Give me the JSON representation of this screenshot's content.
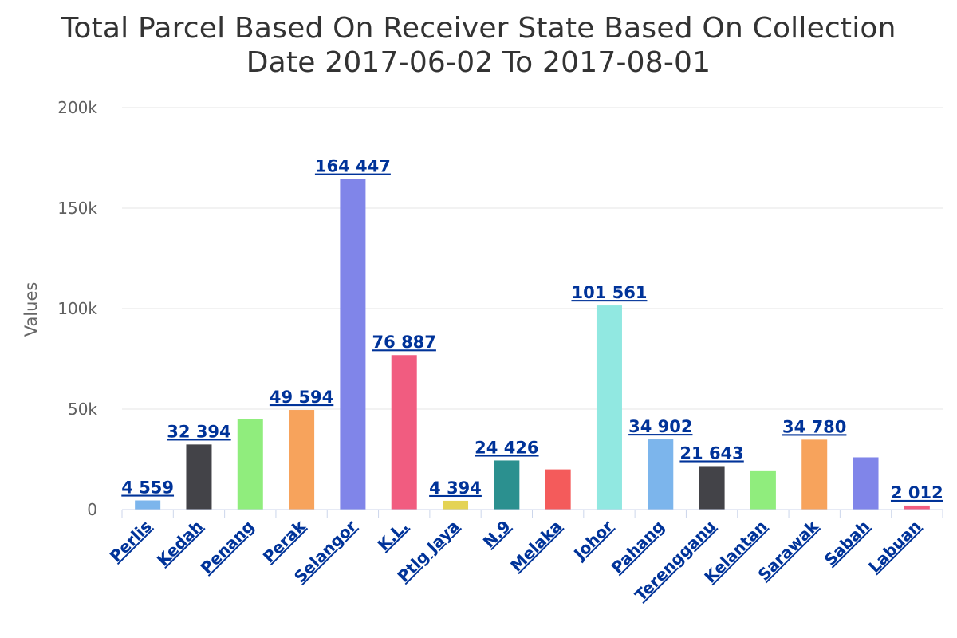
{
  "chart_data": {
    "type": "bar",
    "title_lines": [
      "Total Parcel Based On Receiver State Based On Collection",
      "Date 2017-06-02 To 2017-08-01"
    ],
    "ylabel": "Values",
    "ylim": [
      0,
      200000
    ],
    "yticks": [
      0,
      50000,
      100000,
      150000,
      200000
    ],
    "ytick_labels": [
      "0",
      "50k",
      "100k",
      "150k",
      "200k"
    ],
    "grid": true,
    "legend": "none",
    "categories": [
      "Perlis",
      "Kedah",
      "Penang",
      "Perak",
      "Selangor",
      "K.L.",
      "Ptlg Jaya",
      "N.9",
      "Melaka",
      "Johor",
      "Pahang",
      "Terengganu",
      "Kelantan",
      "Sarawak",
      "Sabah",
      "Labuan"
    ],
    "values": [
      4559,
      32394,
      45000,
      49594,
      164447,
      76887,
      4394,
      24426,
      20000,
      101561,
      34902,
      21643,
      19500,
      34780,
      26000,
      2012
    ],
    "data_labels": [
      "4 559",
      "32 394",
      "",
      "49 594",
      "164 447",
      "76 887",
      "4 394",
      "24 426",
      "",
      "101 561",
      "34 902",
      "21 643",
      "",
      "34 780",
      "",
      "2 012"
    ],
    "colors": [
      "#7cb5ec",
      "#434348",
      "#90ed7d",
      "#f7a35c",
      "#8085e9",
      "#f15c80",
      "#e4d354",
      "#2b908f",
      "#f45b5b",
      "#91e8e1",
      "#7cb5ec",
      "#434348",
      "#90ed7d",
      "#f7a35c",
      "#8085e9",
      "#f15c80"
    ]
  }
}
